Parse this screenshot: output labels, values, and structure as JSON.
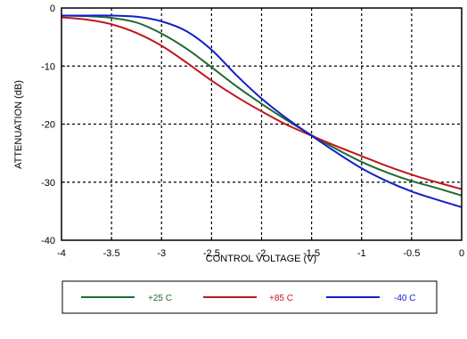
{
  "chart_data": {
    "type": "line",
    "title": "",
    "xlabel": "CONTROL VOLTAGE (V)",
    "ylabel": "ATTENUATION (dB)",
    "xlim": [
      -4,
      0
    ],
    "ylim": [
      -40,
      0
    ],
    "x_ticks": [
      -4,
      -3.5,
      -3,
      -2.5,
      -2,
      -1.5,
      -1,
      -0.5,
      0
    ],
    "x_tick_labels": [
      "-4",
      "-3.5",
      "-3",
      "-2.5",
      "-2",
      "-1.5",
      "-1",
      "-0.5",
      "0"
    ],
    "y_ticks": [
      0,
      -10,
      -20,
      -30,
      -40
    ],
    "y_tick_labels": [
      "0",
      "-10",
      "-20",
      "-30",
      "-40"
    ],
    "grid": true,
    "legend_position": "bottom",
    "series": [
      {
        "name": "+25 C",
        "color": "#1e6b2e",
        "x": [
          -4,
          -3.75,
          -3.5,
          -3.25,
          -3,
          -2.75,
          -2.5,
          -2.25,
          -2,
          -1.75,
          -1.5,
          -1.25,
          -1,
          -0.75,
          -0.5,
          -0.25,
          0
        ],
        "y": [
          -1.3,
          -1.4,
          -1.7,
          -2.5,
          -4.4,
          -7.0,
          -10.2,
          -13.5,
          -16.5,
          -19.3,
          -21.9,
          -24.3,
          -26.5,
          -28.3,
          -29.8,
          -31.0,
          -32.3
        ]
      },
      {
        "name": "+85 C",
        "color": "#c0181c",
        "x": [
          -4,
          -3.75,
          -3.5,
          -3.25,
          -3,
          -2.75,
          -2.5,
          -2.25,
          -2,
          -1.75,
          -1.5,
          -1.25,
          -1,
          -0.75,
          -0.5,
          -0.25,
          0
        ],
        "y": [
          -1.6,
          -2.0,
          -2.8,
          -4.3,
          -6.5,
          -9.4,
          -12.5,
          -15.3,
          -17.8,
          -20.1,
          -22.0,
          -23.8,
          -25.5,
          -27.2,
          -28.7,
          -30.0,
          -31.2
        ]
      },
      {
        "name": "-40 C",
        "color": "#1020c8",
        "x": [
          -4,
          -3.75,
          -3.5,
          -3.25,
          -3,
          -2.75,
          -2.5,
          -2.25,
          -2,
          -1.75,
          -1.5,
          -1.25,
          -1,
          -0.75,
          -0.5,
          -0.25,
          0
        ],
        "y": [
          -1.3,
          -1.3,
          -1.3,
          -1.5,
          -2.3,
          -4.0,
          -7.2,
          -11.6,
          -15.6,
          -19.0,
          -22.0,
          -24.9,
          -27.6,
          -29.8,
          -31.6,
          -33.0,
          -34.3
        ]
      }
    ]
  }
}
